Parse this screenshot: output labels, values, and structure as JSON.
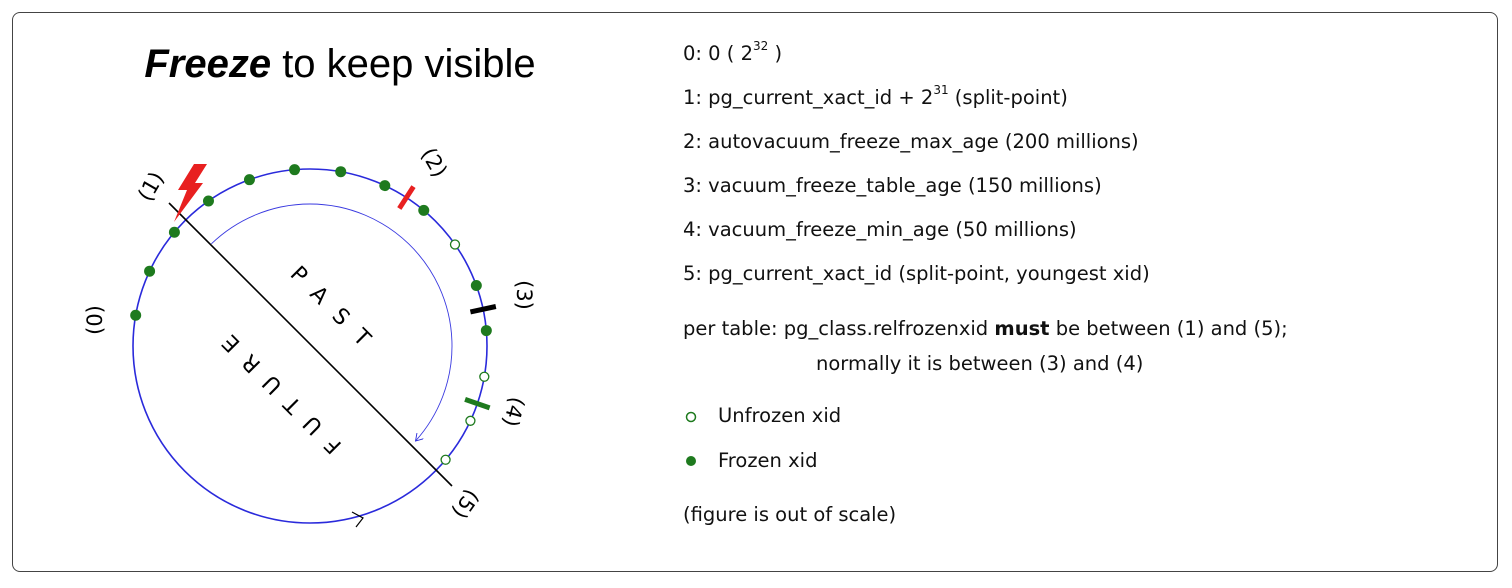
{
  "title": {
    "bold": "Freeze",
    "rest": " to keep visible"
  },
  "diagram": {
    "labels": [
      "(0)",
      "(1)",
      "(2)",
      "(3)",
      "(4)",
      "(5)"
    ],
    "past": "PAST",
    "future": "FUTURE",
    "dots": [
      "frozen",
      "frozen",
      "frozen",
      "frozen",
      "frozen",
      "frozen",
      "frozen",
      "frozen",
      "frozen",
      "unfrozen",
      "frozen",
      "frozen",
      "unfrozen",
      "unfrozen",
      "unfrozen"
    ],
    "colors": {
      "circle": "#2a2adb",
      "frozen": "#1e7a1e",
      "marker2": "#e82020",
      "marker3": "#000000",
      "marker4": "#1e7a1e",
      "lightning": "#e82020"
    }
  },
  "legend_lines": [
    {
      "pre": "0: 0 ( 2",
      "sup": "32",
      "post": " )"
    },
    {
      "pre": "1: pg_current_xact_id + 2",
      "sup": "31",
      "post": " (split-point)"
    },
    {
      "pre": "2: autovacuum_freeze_max_age (200 millions)",
      "sup": "",
      "post": ""
    },
    {
      "pre": "3: vacuum_freeze_table_age (150 millions)",
      "sup": "",
      "post": ""
    },
    {
      "pre": "4: vacuum_freeze_min_age (50 millions)",
      "sup": "",
      "post": ""
    },
    {
      "pre": "5: pg_current_xact_id (split-point, youngest xid)",
      "sup": "",
      "post": ""
    }
  ],
  "note": {
    "pre": "per table: pg_class.relfrozenxid ",
    "bold": "must",
    "post": " be between (1) and (5);",
    "line2": "normally it is between (3) and (4)"
  },
  "key": {
    "unfrozen": "Unfrozen xid",
    "frozen": "Frozen xid"
  },
  "footnote": "(figure is out of scale)"
}
